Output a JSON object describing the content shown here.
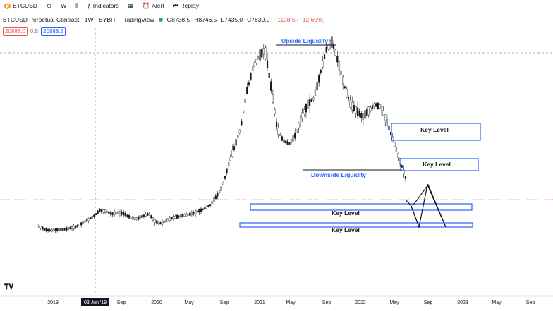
{
  "toolbar": {
    "symbol": "BTCUSD",
    "interval": "W",
    "indicators": "Indicators",
    "alert": "Alert",
    "replay": "Replay"
  },
  "legend": {
    "title": "BTCUSD Perpetual Contract · 1W · BYBIT · TradingView",
    "open": "O8738.5",
    "high": "H8746.5",
    "low": "L7435.0",
    "close": "C7630.0",
    "change": "−1108.5 (−12.69%)"
  },
  "price_boxes": {
    "sell": "20888.0",
    "spread": "0.5",
    "buy": "20888.5"
  },
  "chart_data": {
    "type": "candlestick",
    "x_ticks": [
      "2019",
      "03 Jun '19",
      "Sep",
      "2020",
      "May",
      "Sep",
      "2021",
      "May",
      "Sep",
      "2022",
      "May",
      "Sep",
      "2023",
      "May",
      "Sep"
    ],
    "highlighted_tick": "03 Jun '19",
    "candles_close_path": [
      [
        0.0,
        0.3
      ],
      [
        0.01,
        0.27
      ],
      [
        0.02,
        0.26
      ],
      [
        0.03,
        0.27
      ],
      [
        0.04,
        0.27
      ],
      [
        0.05,
        0.28
      ],
      [
        0.06,
        0.29
      ],
      [
        0.07,
        0.32
      ],
      [
        0.08,
        0.35
      ],
      [
        0.09,
        0.38
      ],
      [
        0.1,
        0.43
      ],
      [
        0.11,
        0.42
      ],
      [
        0.12,
        0.4
      ],
      [
        0.13,
        0.41
      ],
      [
        0.14,
        0.4
      ],
      [
        0.15,
        0.37
      ],
      [
        0.16,
        0.36
      ],
      [
        0.17,
        0.38
      ],
      [
        0.18,
        0.4
      ],
      [
        0.19,
        0.34
      ],
      [
        0.2,
        0.32
      ],
      [
        0.21,
        0.35
      ],
      [
        0.22,
        0.37
      ],
      [
        0.23,
        0.38
      ],
      [
        0.24,
        0.39
      ],
      [
        0.25,
        0.4
      ],
      [
        0.26,
        0.42
      ],
      [
        0.27,
        0.44
      ],
      [
        0.28,
        0.47
      ],
      [
        0.29,
        0.54
      ],
      [
        0.3,
        0.62
      ],
      [
        0.31,
        0.8
      ],
      [
        0.32,
        0.95
      ],
      [
        0.33,
        1.1
      ],
      [
        0.34,
        1.4
      ],
      [
        0.35,
        1.6
      ],
      [
        0.36,
        1.7
      ],
      [
        0.37,
        1.75
      ],
      [
        0.38,
        1.45
      ],
      [
        0.39,
        1.1
      ],
      [
        0.4,
        1.0
      ],
      [
        0.41,
        0.98
      ],
      [
        0.42,
        1.05
      ],
      [
        0.43,
        1.2
      ],
      [
        0.44,
        1.3
      ],
      [
        0.45,
        1.35
      ],
      [
        0.46,
        1.55
      ],
      [
        0.47,
        1.75
      ],
      [
        0.48,
        1.82
      ],
      [
        0.49,
        1.65
      ],
      [
        0.5,
        1.45
      ],
      [
        0.51,
        1.3
      ],
      [
        0.52,
        1.25
      ],
      [
        0.53,
        1.2
      ],
      [
        0.54,
        1.25
      ],
      [
        0.55,
        1.3
      ],
      [
        0.56,
        1.28
      ],
      [
        0.57,
        1.15
      ],
      [
        0.58,
        1.0
      ],
      [
        0.59,
        0.85
      ],
      [
        0.6,
        0.7
      ]
    ],
    "annotations": [
      "Upside Liquidity",
      "Downside Liquidity",
      "Key Level",
      "Key Level",
      "Key Level",
      "Key Level"
    ],
    "grid": false
  }
}
